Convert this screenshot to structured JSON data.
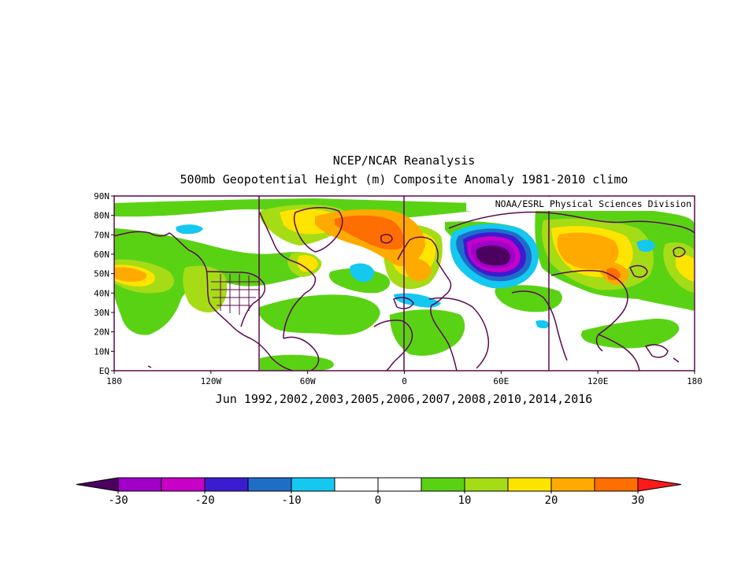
{
  "title_line1": "NCEP/NCAR Reanalysis",
  "title_line2": "500mb Geopotential Height (m) Composite Anomaly 1981-2010 climo",
  "credit": "NOAA/ESRL Physical Sciences Division",
  "subtitle": "Jun 1992,2002,2003,2005,2006,2007,2008,2010,2014,2016",
  "map": {
    "lon_range": [
      -180,
      180
    ],
    "lat_range": [
      0,
      90
    ],
    "lat_labels": [
      {
        "value": 90,
        "label": "90N"
      },
      {
        "value": 80,
        "label": "80N"
      },
      {
        "value": 70,
        "label": "70N"
      },
      {
        "value": 60,
        "label": "60N"
      },
      {
        "value": 50,
        "label": "50N"
      },
      {
        "value": 40,
        "label": "40N"
      },
      {
        "value": 30,
        "label": "30N"
      },
      {
        "value": 20,
        "label": "20N"
      },
      {
        "value": 10,
        "label": "10N"
      },
      {
        "value": 0,
        "label": "EQ"
      }
    ],
    "lon_labels": [
      {
        "value": -180,
        "label": "180"
      },
      {
        "value": -120,
        "label": "120W"
      },
      {
        "value": -60,
        "label": "60W"
      },
      {
        "value": 0,
        "label": "0"
      },
      {
        "value": 60,
        "label": "60E"
      },
      {
        "value": 120,
        "label": "120E"
      },
      {
        "value": 180,
        "label": "180"
      }
    ],
    "meridian_lines": [
      -90,
      0,
      90
    ],
    "anomaly_features": [
      {
        "name": "n-pacific-low",
        "lon": -150,
        "lat": 60,
        "value": -7
      },
      {
        "name": "ne-pacific-high",
        "lon": -160,
        "lat": 48,
        "value": 18
      },
      {
        "name": "greenland-high",
        "lon": -40,
        "lat": 76,
        "value": 20
      },
      {
        "name": "arctic-europe-high",
        "lon": 0,
        "lat": 72,
        "value": 25
      },
      {
        "name": "hudson-high",
        "lon": -75,
        "lat": 55,
        "value": 18
      },
      {
        "name": "n-atlantic-low",
        "lon": -25,
        "lat": 52,
        "value": -8
      },
      {
        "name": "w-russia-low",
        "lon": 60,
        "lat": 62,
        "value": -30
      },
      {
        "name": "e-siberia-high",
        "lon": 115,
        "lat": 60,
        "value": 18
      },
      {
        "name": "ne-asia-high",
        "lon": 135,
        "lat": 50,
        "value": 22
      }
    ]
  },
  "colorbar": {
    "colors": [
      "#a000c8",
      "#c800c8",
      "#3c1cd0",
      "#1e6ec8",
      "#14c8f0",
      "#ffffff",
      "#ffffff",
      "#5ad214",
      "#a5dc16",
      "#ffe400",
      "#ffaa00",
      "#ff6e00"
    ],
    "under_color": "#4c0060",
    "over_color": "#ff1a1a",
    "labels": [
      "-30",
      "-20",
      "-10",
      "0",
      "10",
      "20",
      "30"
    ]
  }
}
